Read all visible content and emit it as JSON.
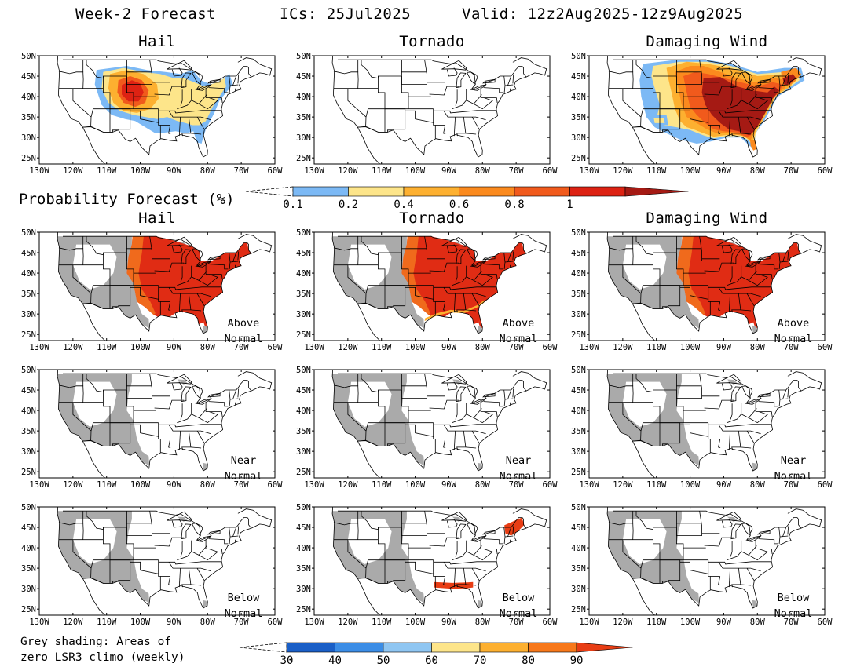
{
  "header": {
    "product": "Week-2 Forecast",
    "ics": "ICs: 25Jul2025",
    "valid": "Valid: 12z2Aug2025-12z9Aug2025"
  },
  "hazards": [
    "Hail",
    "Tornado",
    "Damaging Wind"
  ],
  "axes": {
    "lon_labels": [
      "130W",
      "120W",
      "110W",
      "100W",
      "90W",
      "80W",
      "70W",
      "60W"
    ],
    "lat_labels": [
      "50N",
      "45N",
      "40N",
      "35N",
      "30N",
      "25N"
    ]
  },
  "probability_section": {
    "title": "Probability Forecast (%)",
    "colorbar_labels": [
      "0.1",
      "0.2",
      "0.4",
      "0.6",
      "0.8",
      "1"
    ],
    "colors": [
      "#7cb9f5",
      "#fde58a",
      "#fdb030",
      "#fb8a1e",
      "#f15a1c",
      "#dd2213",
      "#a51a14"
    ]
  },
  "categories": [
    {
      "label_line1": "Above",
      "label_line2": "Normal"
    },
    {
      "label_line1": "Near",
      "label_line2": "Normal"
    },
    {
      "label_line1": "Below",
      "label_line2": "Normal"
    }
  ],
  "footnote": {
    "line1": "Grey shading: Areas of",
    "line2": "zero LSR3 climo (weekly)"
  },
  "percent_colorbar": {
    "labels": [
      "30",
      "40",
      "50",
      "60",
      "70",
      "80",
      "90"
    ],
    "colors": [
      "#1a5fc7",
      "#3b8de6",
      "#8fc6f2",
      "#fde58a",
      "#fdb030",
      "#f7781a",
      "#e83d14"
    ]
  },
  "colors": {
    "grey": "#aaaaaa",
    "above": "#e02c14",
    "above_edge": "#f06a1c",
    "below": "#e83d14"
  }
}
